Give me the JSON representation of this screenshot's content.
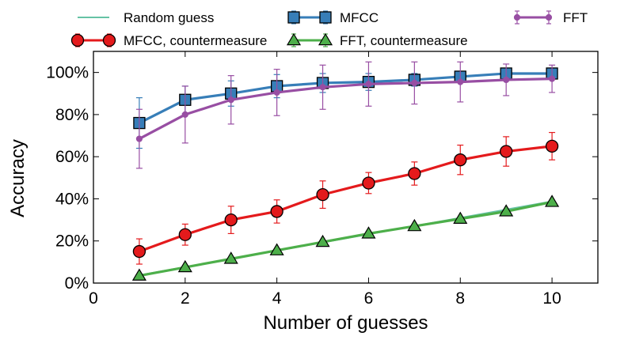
{
  "chart_data": {
    "type": "line",
    "xlabel": "Number of guesses",
    "ylabel": "Accuracy",
    "xlim": [
      0,
      11
    ],
    "ylim": [
      0,
      110
    ],
    "x_ticks": [
      0,
      2,
      4,
      6,
      8,
      10
    ],
    "y_ticks": [
      0,
      20,
      40,
      60,
      80,
      100
    ],
    "y_tick_format": "percent",
    "grid": false,
    "legend_position": "top",
    "x": [
      1,
      2,
      3,
      4,
      5,
      6,
      7,
      8,
      9,
      10
    ],
    "series": [
      {
        "name": "Random guess",
        "color": "#66c2a5",
        "marker": "none",
        "values": [
          3.7,
          7.6,
          11.5,
          15.4,
          19.3,
          23.2,
          27.1,
          31.0,
          34.9,
          38.8
        ],
        "errors": null
      },
      {
        "name": "MFCC, countermeasure",
        "color": "#e41a1c",
        "marker": "circle",
        "values": [
          15,
          23,
          30,
          34,
          42,
          47.5,
          52,
          58.5,
          62.5,
          65
        ],
        "errors": [
          6,
          5,
          6.5,
          5.5,
          6.5,
          5,
          5.5,
          7,
          7,
          6.5
        ]
      },
      {
        "name": "MFCC",
        "color": "#377eb8",
        "marker": "square",
        "values": [
          76,
          87,
          90,
          93.5,
          95,
          95.5,
          96.5,
          98,
          99.5,
          99.5
        ],
        "errors": [
          12,
          6.5,
          6,
          5.5,
          4.5,
          4,
          3,
          2.5,
          1.5,
          1.5
        ]
      },
      {
        "name": "FFT, countermeasure",
        "color": "#4daf4a",
        "marker": "triangle",
        "values": [
          3.5,
          7.5,
          11.5,
          15.5,
          19.5,
          23.5,
          27,
          30.5,
          34,
          38.5
        ],
        "errors": [
          0.5,
          0.5,
          0.5,
          0.5,
          0.5,
          0.5,
          0.5,
          0.5,
          0.5,
          0.5
        ]
      },
      {
        "name": "FFT",
        "color": "#984ea3",
        "marker": "small-circle",
        "values": [
          68.5,
          80,
          87,
          90.5,
          93,
          94.5,
          95,
          95.5,
          96.5,
          97
        ],
        "errors": [
          14,
          13.5,
          11.5,
          11,
          10.5,
          10.5,
          10,
          9.5,
          7.5,
          6.5
        ]
      }
    ]
  }
}
